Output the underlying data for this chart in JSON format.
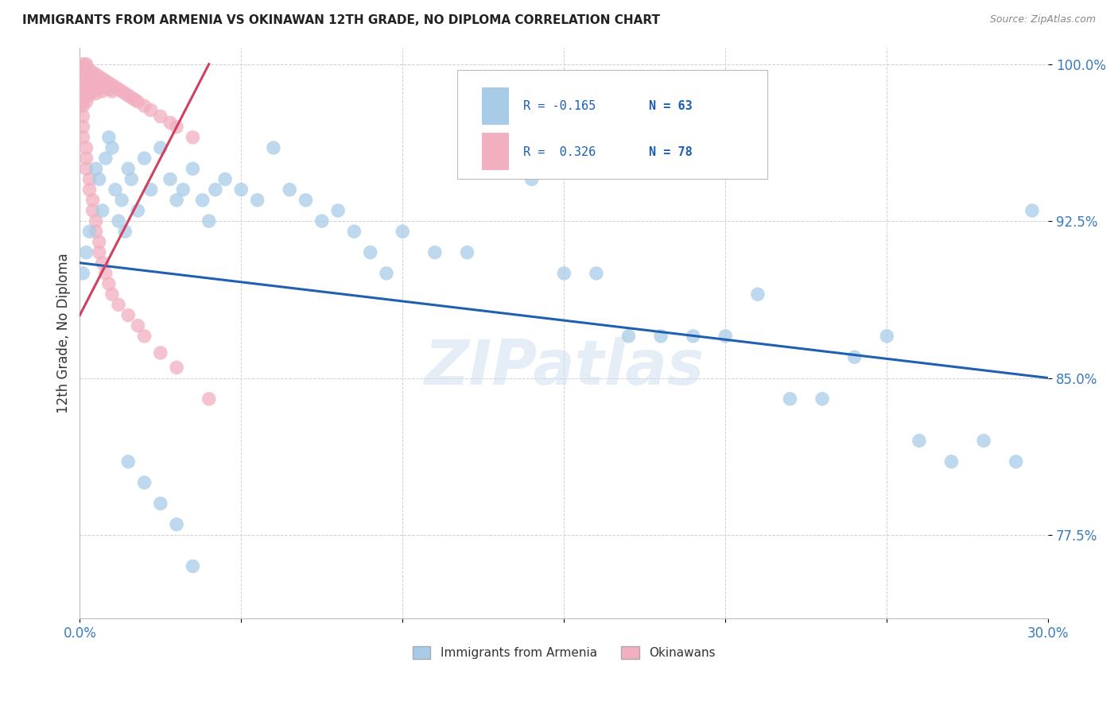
{
  "title": "IMMIGRANTS FROM ARMENIA VS OKINAWAN 12TH GRADE, NO DIPLOMA CORRELATION CHART",
  "source": "Source: ZipAtlas.com",
  "ylabel": "12th Grade, No Diploma",
  "watermark": "ZIPatlas",
  "legend_labels": [
    "Immigrants from Armenia",
    "Okinawans"
  ],
  "legend_r": [
    "R = -0.165",
    "R =  0.326"
  ],
  "legend_n": [
    "N = 63",
    "N = 78"
  ],
  "blue_color": "#a8cce8",
  "pink_color": "#f2afc0",
  "line_blue": "#2060b0",
  "line_pink": "#d04060",
  "xmin": 0.0,
  "xmax": 0.3,
  "ymin": 0.735,
  "ymax": 1.008,
  "yticks": [
    0.775,
    0.85,
    0.925,
    1.0
  ],
  "ytick_labels": [
    "77.5%",
    "85.0%",
    "92.5%",
    "100.0%"
  ],
  "xticks": [
    0.0,
    0.05,
    0.1,
    0.15,
    0.2,
    0.25,
    0.3
  ],
  "xtick_labels": [
    "0.0%",
    "",
    "",
    "",
    "",
    "",
    "30.0%"
  ],
  "blue_x": [
    0.001,
    0.002,
    0.003,
    0.005,
    0.006,
    0.007,
    0.008,
    0.009,
    0.01,
    0.011,
    0.012,
    0.013,
    0.014,
    0.015,
    0.016,
    0.018,
    0.02,
    0.022,
    0.025,
    0.028,
    0.03,
    0.032,
    0.035,
    0.038,
    0.04,
    0.042,
    0.045,
    0.05,
    0.055,
    0.06,
    0.065,
    0.07,
    0.075,
    0.08,
    0.085,
    0.09,
    0.095,
    0.1,
    0.11,
    0.12,
    0.13,
    0.14,
    0.15,
    0.16,
    0.17,
    0.18,
    0.19,
    0.2,
    0.21,
    0.22,
    0.23,
    0.24,
    0.25,
    0.26,
    0.27,
    0.28,
    0.29,
    0.015,
    0.02,
    0.025,
    0.03,
    0.035,
    0.295
  ],
  "blue_y": [
    0.9,
    0.91,
    0.92,
    0.95,
    0.945,
    0.93,
    0.955,
    0.965,
    0.96,
    0.94,
    0.925,
    0.935,
    0.92,
    0.95,
    0.945,
    0.93,
    0.955,
    0.94,
    0.96,
    0.945,
    0.935,
    0.94,
    0.95,
    0.935,
    0.925,
    0.94,
    0.945,
    0.94,
    0.935,
    0.96,
    0.94,
    0.935,
    0.925,
    0.93,
    0.92,
    0.91,
    0.9,
    0.92,
    0.91,
    0.91,
    0.96,
    0.945,
    0.9,
    0.9,
    0.87,
    0.87,
    0.87,
    0.87,
    0.89,
    0.84,
    0.84,
    0.86,
    0.87,
    0.82,
    0.81,
    0.82,
    0.81,
    0.81,
    0.8,
    0.79,
    0.78,
    0.76,
    0.93
  ],
  "pink_x": [
    0.001,
    0.001,
    0.001,
    0.001,
    0.001,
    0.001,
    0.001,
    0.002,
    0.002,
    0.002,
    0.002,
    0.002,
    0.002,
    0.003,
    0.003,
    0.003,
    0.003,
    0.003,
    0.004,
    0.004,
    0.004,
    0.004,
    0.005,
    0.005,
    0.005,
    0.005,
    0.006,
    0.006,
    0.006,
    0.007,
    0.007,
    0.007,
    0.008,
    0.008,
    0.009,
    0.009,
    0.01,
    0.01,
    0.011,
    0.012,
    0.013,
    0.014,
    0.015,
    0.016,
    0.017,
    0.018,
    0.02,
    0.022,
    0.025,
    0.028,
    0.03,
    0.035,
    0.0,
    0.001,
    0.001,
    0.001,
    0.002,
    0.002,
    0.002,
    0.003,
    0.003,
    0.004,
    0.004,
    0.005,
    0.005,
    0.006,
    0.006,
    0.007,
    0.008,
    0.009,
    0.01,
    0.012,
    0.015,
    0.018,
    0.02,
    0.025,
    0.03,
    0.04
  ],
  "pink_y": [
    0.995,
    0.998,
    1.0,
    0.992,
    0.988,
    0.984,
    0.98,
    0.996,
    0.999,
    1.0,
    0.99,
    0.986,
    0.982,
    0.997,
    0.994,
    0.991,
    0.988,
    0.985,
    0.996,
    0.993,
    0.99,
    0.987,
    0.995,
    0.992,
    0.989,
    0.986,
    0.994,
    0.991,
    0.988,
    0.993,
    0.99,
    0.987,
    0.992,
    0.989,
    0.991,
    0.988,
    0.99,
    0.987,
    0.989,
    0.988,
    0.987,
    0.986,
    0.985,
    0.984,
    0.983,
    0.982,
    0.98,
    0.978,
    0.975,
    0.972,
    0.97,
    0.965,
    0.98,
    0.975,
    0.97,
    0.965,
    0.96,
    0.955,
    0.95,
    0.945,
    0.94,
    0.935,
    0.93,
    0.925,
    0.92,
    0.915,
    0.91,
    0.905,
    0.9,
    0.895,
    0.89,
    0.885,
    0.88,
    0.875,
    0.87,
    0.862,
    0.855,
    0.84
  ],
  "blue_line_x": [
    0.0,
    0.3
  ],
  "blue_line_y": [
    0.905,
    0.85
  ],
  "pink_line_x": [
    0.0,
    0.04
  ],
  "pink_line_y": [
    0.88,
    1.0
  ]
}
